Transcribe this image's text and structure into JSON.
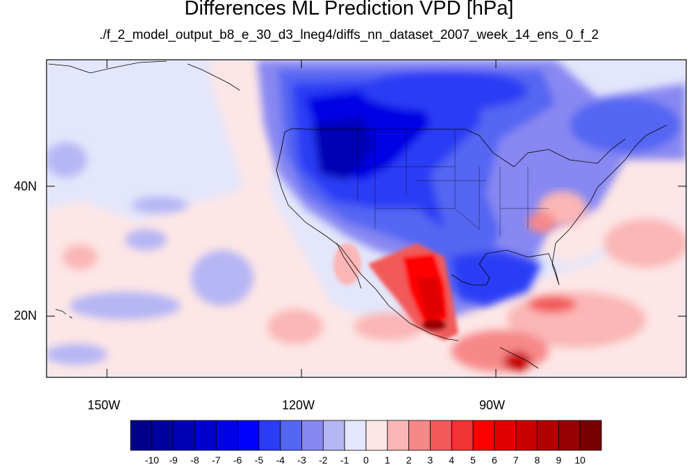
{
  "title": "Differences ML Prediction VPD [hPa]",
  "subtitle": "./f_2_model_output_b8_e_30_d3_lneg4/diffs_nn_dataset_2007_week_14_ens_0_f_2",
  "axes": {
    "lat_labels": [
      "40N",
      "20N"
    ],
    "lon_labels": [
      "150W",
      "120W",
      "90W"
    ]
  },
  "colorbar": {
    "labels": [
      "-10",
      "-9",
      "-8",
      "-7",
      "-6",
      "-5",
      "-4",
      "-3",
      "-2",
      "-1",
      "0",
      "1",
      "2",
      "3",
      "4",
      "5",
      "6",
      "7",
      "8",
      "9",
      "10"
    ],
    "colors": [
      "#00008a",
      "#00009e",
      "#0000b4",
      "#0000cc",
      "#0000e4",
      "#0000ff",
      "#2b3cf5",
      "#5566f2",
      "#8888f2",
      "#b6b6f5",
      "#e4e6fb",
      "#fde6e6",
      "#fbb6b6",
      "#f78888",
      "#f25a5a",
      "#f03333",
      "#ff0000",
      "#e00000",
      "#c80000",
      "#b00000",
      "#960000",
      "#780000"
    ]
  },
  "colors": {
    "neutral": "#e4e6fb",
    "land_blue": "#2b3cf5",
    "hot_red": "#f03333"
  }
}
